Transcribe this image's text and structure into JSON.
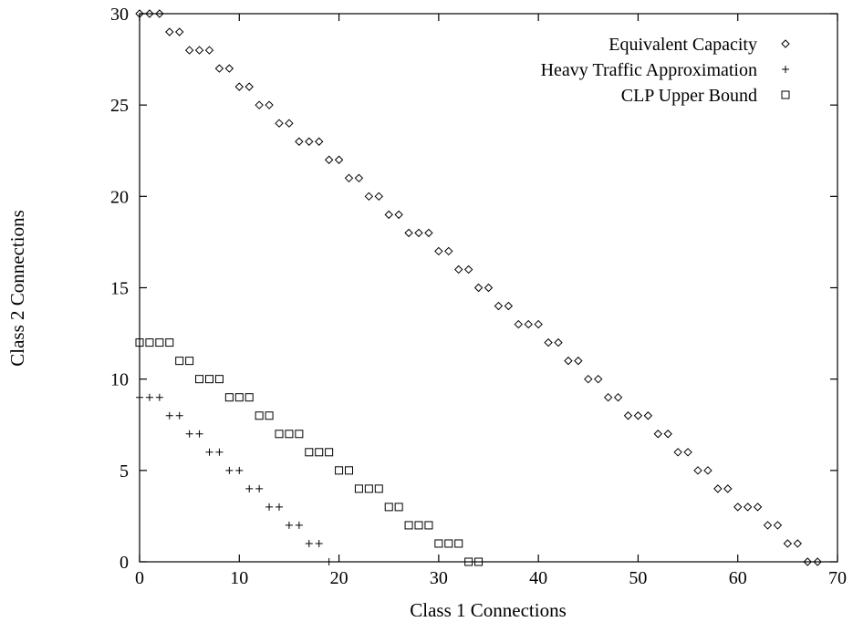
{
  "chart_data": {
    "type": "scatter",
    "xlabel": "Class 1 Connections",
    "ylabel": "Class 2 Connections",
    "xlim": [
      0,
      70
    ],
    "ylim": [
      0,
      30
    ],
    "xticks": [
      "0",
      "10",
      "20",
      "30",
      "40",
      "50",
      "60",
      "70"
    ],
    "yticks": [
      "0",
      "5",
      "10",
      "15",
      "20",
      "25",
      "30"
    ],
    "grid": false,
    "legend_position": "top-right",
    "series": [
      {
        "name": "Equivalent Capacity",
        "marker": "diamond",
        "x": [
          0,
          1,
          2,
          3,
          4,
          5,
          6,
          7,
          8,
          9,
          10,
          11,
          12,
          13,
          14,
          15,
          16,
          17,
          18,
          19,
          20,
          21,
          22,
          23,
          24,
          25,
          26,
          27,
          28,
          29,
          30,
          31,
          32,
          33,
          34,
          35,
          36,
          37,
          38,
          39,
          40,
          41,
          42,
          43,
          44,
          45,
          46,
          47,
          48,
          49,
          50,
          51,
          52,
          53,
          54,
          55,
          56,
          57,
          58,
          59,
          60,
          61,
          62,
          63,
          64,
          65,
          66,
          67,
          68
        ],
        "y": [
          30,
          30,
          30,
          29,
          29,
          28,
          28,
          28,
          27,
          27,
          26,
          26,
          25,
          25,
          24,
          24,
          23,
          23,
          23,
          22,
          22,
          21,
          21,
          20,
          20,
          19,
          19,
          18,
          18,
          18,
          17,
          17,
          16,
          16,
          15,
          15,
          14,
          14,
          13,
          13,
          13,
          12,
          12,
          11,
          11,
          10,
          10,
          9,
          9,
          8,
          8,
          8,
          7,
          7,
          6,
          6,
          5,
          5,
          4,
          4,
          3,
          3,
          3,
          2,
          2,
          1,
          1,
          0,
          0
        ]
      },
      {
        "name": "Heavy Traffic Approximation",
        "marker": "plus",
        "x": [
          0,
          1,
          2,
          3,
          4,
          5,
          6,
          7,
          8,
          9,
          10,
          11,
          12,
          13,
          14,
          15,
          16,
          17,
          18,
          19
        ],
        "y": [
          9,
          9,
          9,
          8,
          8,
          7,
          7,
          6,
          6,
          5,
          5,
          4,
          4,
          3,
          3,
          2,
          2,
          1,
          1,
          0
        ]
      },
      {
        "name": "CLP Upper Bound",
        "marker": "square",
        "x": [
          0,
          1,
          2,
          3,
          4,
          5,
          6,
          7,
          8,
          9,
          10,
          11,
          12,
          13,
          14,
          15,
          16,
          17,
          18,
          19,
          20,
          21,
          22,
          23,
          24,
          25,
          26,
          27,
          28,
          29,
          30,
          31,
          32,
          33,
          34
        ],
        "y": [
          12,
          12,
          12,
          12,
          11,
          11,
          10,
          10,
          10,
          9,
          9,
          9,
          8,
          8,
          7,
          7,
          7,
          6,
          6,
          6,
          5,
          5,
          4,
          4,
          4,
          3,
          3,
          2,
          2,
          2,
          1,
          1,
          1,
          0,
          0
        ]
      }
    ]
  }
}
